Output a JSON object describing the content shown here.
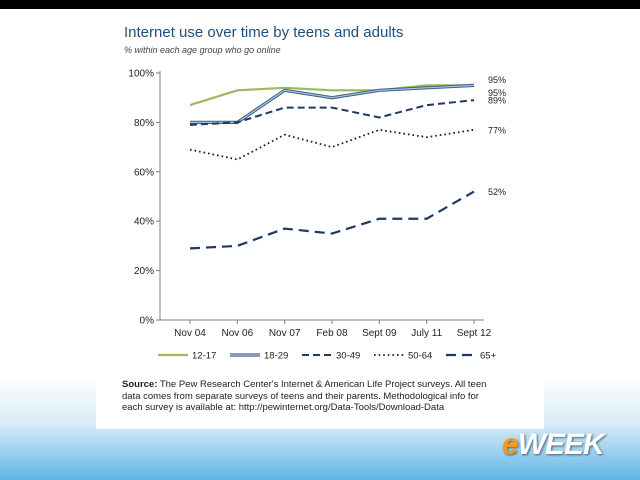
{
  "page": {
    "logo_prefix": "e",
    "logo_rest": "WEEK"
  },
  "chart_data": {
    "type": "line",
    "title": "Internet use over time by teens and adults",
    "subtitle": "% within each age group who go online",
    "categories": [
      "Nov 04",
      "Nov 06",
      "Nov 07",
      "Feb 08",
      "Sept 09",
      "July 11",
      "Sept 12"
    ],
    "ylim": [
      0,
      100
    ],
    "yticks": [
      "0%",
      "20%",
      "40%",
      "60%",
      "80%",
      "100%"
    ],
    "grid": false,
    "legend_position": "bottom",
    "series": [
      {
        "name": "12-17",
        "values": [
          87,
          93,
          94,
          93,
          93,
          95,
          95
        ],
        "end_label": "95%",
        "color": "#9bbb59",
        "style": "solid"
      },
      {
        "name": "18-29",
        "values": [
          80,
          80,
          93,
          90,
          93,
          94,
          95
        ],
        "end_label": "95%",
        "color": "#6b8fb8",
        "style": "double"
      },
      {
        "name": "30-49",
        "values": [
          79,
          80,
          86,
          86,
          82,
          87,
          89
        ],
        "end_label": "89%",
        "color": "#1f3864",
        "style": "dashed"
      },
      {
        "name": "50-64",
        "values": [
          69,
          65,
          75,
          70,
          77,
          74,
          77
        ],
        "end_label": "77%",
        "color": "#1a1a1a",
        "style": "dotted"
      },
      {
        "name": "65+",
        "values": [
          29,
          30,
          37,
          35,
          41,
          41,
          52
        ],
        "end_label": "52%",
        "color": "#1f3864",
        "style": "longdash"
      }
    ],
    "source_label": "Source:",
    "source_text": "The Pew Research Center's Internet & American Life Project surveys. All teen data comes from separate surveys of teens and their parents. Methodological info for each survey is available at: http://pewinternet.org/Data-Tools/Download-Data"
  }
}
